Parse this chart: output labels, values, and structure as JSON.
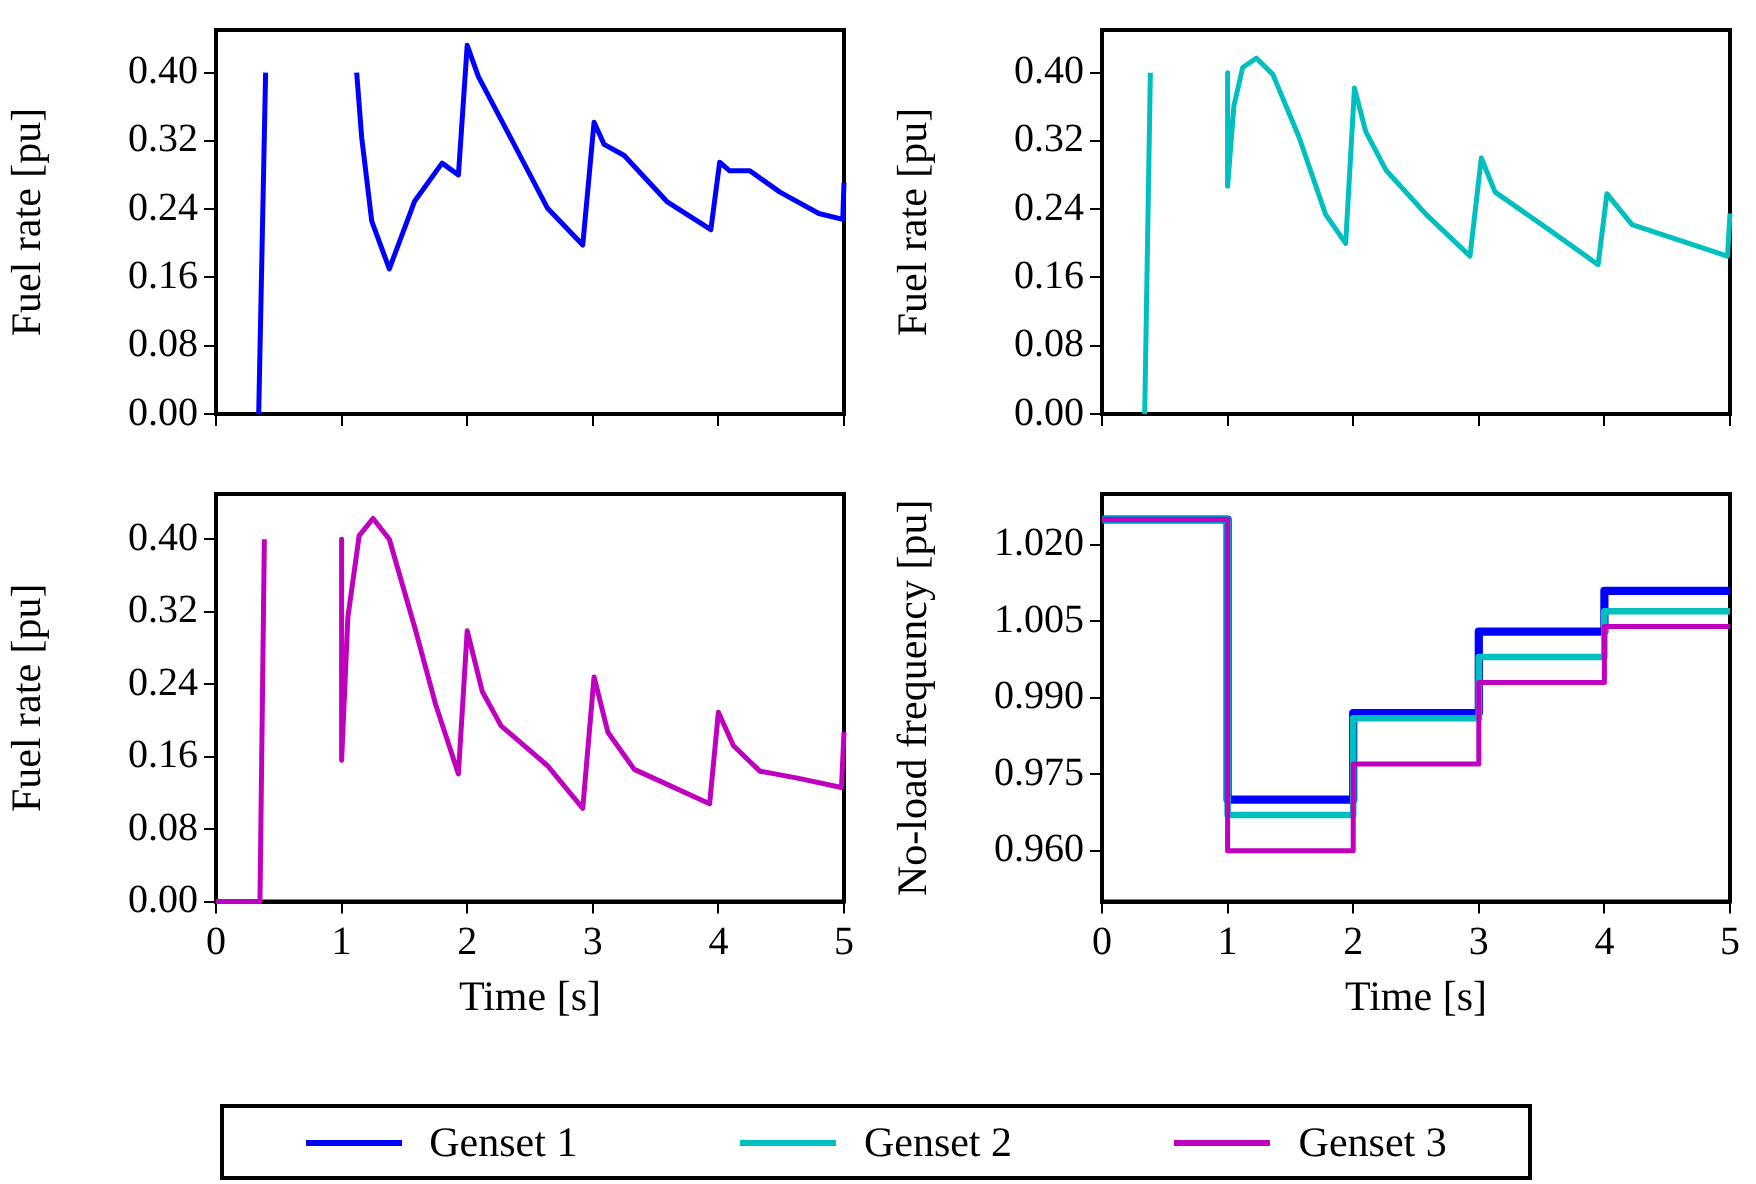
{
  "chart_data": [
    {
      "type": "line",
      "ylabel": "Fuel rate [pu]",
      "xlim": [
        0,
        5
      ],
      "xticks": [
        0,
        1,
        2,
        3,
        4,
        5
      ],
      "ylim": [
        0,
        0.45
      ],
      "yticks": [
        {
          "value": 0,
          "label": "0.00"
        },
        {
          "value": 0.08,
          "label": "0.08"
        },
        {
          "value": 0.16,
          "label": "0.16"
        },
        {
          "value": 0.24,
          "label": "0.24"
        },
        {
          "value": 0.32,
          "label": "0.32"
        },
        {
          "value": 0.4,
          "label": "0.40"
        }
      ],
      "tick_labels": "y",
      "series": [
        {
          "color": "#0000ff",
          "x": [
            0.34,
            0.395,
            0.7,
            1.12,
            1.16,
            1.24,
            1.38,
            1.58,
            1.8,
            1.93,
            2.0,
            2.09,
            2.32,
            2.64,
            2.92,
            3.01,
            3.09,
            3.25,
            3.59,
            3.94,
            4.01,
            4.09,
            4.25,
            4.49,
            4.8,
            4.99,
            5.0
          ],
          "values": [
            0,
            0.4,
            null,
            0.4,
            0.324,
            0.226,
            0.17,
            0.249,
            0.294,
            0.28,
            0.432,
            0.395,
            0.331,
            0.241,
            0.198,
            0.342,
            0.316,
            0.303,
            0.249,
            0.216,
            0.295,
            0.285,
            0.285,
            0.26,
            0.235,
            0.228,
            0.271
          ]
        }
      ]
    },
    {
      "type": "line",
      "ylabel": "Fuel rate [pu]",
      "xlim": [
        0,
        5
      ],
      "xticks": [
        0,
        1,
        2,
        3,
        4,
        5
      ],
      "ylim": [
        0,
        0.45
      ],
      "yticks": [
        {
          "value": 0,
          "label": "0.00"
        },
        {
          "value": 0.08,
          "label": "0.08"
        },
        {
          "value": 0.16,
          "label": "0.16"
        },
        {
          "value": 0.24,
          "label": "0.24"
        },
        {
          "value": 0.32,
          "label": "0.32"
        },
        {
          "value": 0.4,
          "label": "0.40"
        }
      ],
      "tick_labels": "y",
      "series": [
        {
          "color": "#00bfbf",
          "x": [
            0.34,
            0.385,
            0.7,
            1.0,
            1.0,
            1.05,
            1.12,
            1.23,
            1.36,
            1.57,
            1.78,
            1.94,
            2.01,
            2.1,
            2.26,
            2.58,
            2.93,
            3.02,
            3.13,
            3.53,
            3.95,
            4.02,
            4.22,
            4.98,
            5.0
          ],
          "values": [
            0,
            0.4,
            null,
            0.4,
            0.267,
            0.361,
            0.406,
            0.417,
            0.398,
            0.324,
            0.234,
            0.2,
            0.382,
            0.331,
            0.286,
            0.234,
            0.185,
            0.3,
            0.26,
            0.219,
            0.175,
            0.258,
            0.222,
            0.185,
            0.235
          ]
        }
      ]
    },
    {
      "type": "line",
      "xlabel": "Time [s]",
      "ylabel": "Fuel rate [pu]",
      "xlim": [
        0,
        5
      ],
      "xticks": [
        0,
        1,
        2,
        3,
        4,
        5
      ],
      "ylim": [
        0,
        0.45
      ],
      "yticks": [
        {
          "value": 0,
          "label": "0.00"
        },
        {
          "value": 0.08,
          "label": "0.08"
        },
        {
          "value": 0.16,
          "label": "0.16"
        },
        {
          "value": 0.24,
          "label": "0.24"
        },
        {
          "value": 0.32,
          "label": "0.32"
        },
        {
          "value": 0.4,
          "label": "0.40"
        }
      ],
      "series": [
        {
          "color": "#bf00bf",
          "x": [
            0,
            0.35,
            0.385,
            0.7,
            1.0,
            1.0,
            1.05,
            1.14,
            1.25,
            1.38,
            1.59,
            1.75,
            1.93,
            2.0,
            2.12,
            2.27,
            2.64,
            2.92,
            3.01,
            3.12,
            3.33,
            3.93,
            4.0,
            4.12,
            4.33,
            4.64,
            4.98,
            5.0
          ],
          "values": [
            0,
            0,
            0.4,
            null,
            0.4,
            0.156,
            0.314,
            0.404,
            0.423,
            0.4,
            0.299,
            0.217,
            0.141,
            0.299,
            0.232,
            0.194,
            0.15,
            0.103,
            0.248,
            0.187,
            0.146,
            0.108,
            0.209,
            0.172,
            0.144,
            0.136,
            0.126,
            0.187
          ]
        }
      ]
    },
    {
      "type": "step",
      "xlabel": "Time [s]",
      "ylabel": "No-load frequency [pu]",
      "xlim": [
        0,
        5
      ],
      "xticks": [
        0,
        1,
        2,
        3,
        4,
        5
      ],
      "ylim": [
        0.95,
        1.03
      ],
      "yticks": [
        {
          "value": 0.96,
          "label": "0.960"
        },
        {
          "value": 0.975,
          "label": "0.975"
        },
        {
          "value": 0.99,
          "label": "0.990"
        },
        {
          "value": 1.005,
          "label": "1.005"
        },
        {
          "value": 1.02,
          "label": "1.020"
        }
      ],
      "legend": "bottom",
      "x": [
        0,
        1,
        2,
        3,
        4,
        5
      ],
      "series": [
        {
          "name": "Genset 1",
          "color": "#0000ff",
          "values": [
            1.025,
            0.97,
            0.987,
            1.003,
            1.011,
            1.011
          ]
        },
        {
          "name": "Genset 2",
          "color": "#00bfbf",
          "values": [
            1.025,
            0.967,
            0.986,
            0.998,
            1.007,
            1.007
          ]
        },
        {
          "name": "Genset 3",
          "color": "#bf00bf",
          "values": [
            1.025,
            0.96,
            0.977,
            0.993,
            1.004,
            1.004
          ]
        }
      ]
    }
  ]
}
